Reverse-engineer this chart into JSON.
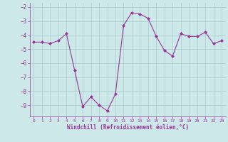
{
  "x": [
    0,
    1,
    2,
    3,
    4,
    5,
    6,
    7,
    8,
    9,
    10,
    11,
    12,
    13,
    14,
    15,
    16,
    17,
    18,
    19,
    20,
    21,
    22,
    23
  ],
  "y": [
    -4.5,
    -4.5,
    -4.6,
    -4.4,
    -3.9,
    -6.5,
    -9.1,
    -8.4,
    -9.0,
    -9.4,
    -8.2,
    -3.3,
    -2.4,
    -2.5,
    -2.8,
    -4.1,
    -5.1,
    -5.5,
    -3.9,
    -4.1,
    -4.1,
    -3.8,
    -4.6,
    -4.4
  ],
  "line_color": "#993399",
  "marker": "D",
  "marker_size": 2,
  "bg_color": "#cce8e8",
  "grid_color": "#aacccc",
  "xlabel": "Windchill (Refroidissement éolien,°C)",
  "xlabel_color": "#993399",
  "tick_color": "#993399",
  "ylim": [
    -9.8,
    -1.7
  ],
  "xlim": [
    -0.5,
    23.5
  ],
  "yticks": [
    -9,
    -8,
    -7,
    -6,
    -5,
    -4,
    -3,
    -2
  ],
  "xticks": [
    0,
    1,
    2,
    3,
    4,
    5,
    6,
    7,
    8,
    9,
    10,
    11,
    12,
    13,
    14,
    15,
    16,
    17,
    18,
    19,
    20,
    21,
    22,
    23
  ]
}
